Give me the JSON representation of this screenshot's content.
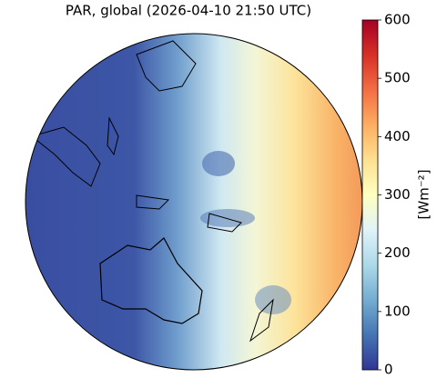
{
  "title": "PAR, global (2026-04-10 21:50 UTC)",
  "colorbar": {
    "label": "[Wm⁻²]",
    "lim": [
      0,
      600
    ],
    "ticks": [
      0,
      100,
      200,
      300,
      400,
      500,
      600
    ]
  }
}
